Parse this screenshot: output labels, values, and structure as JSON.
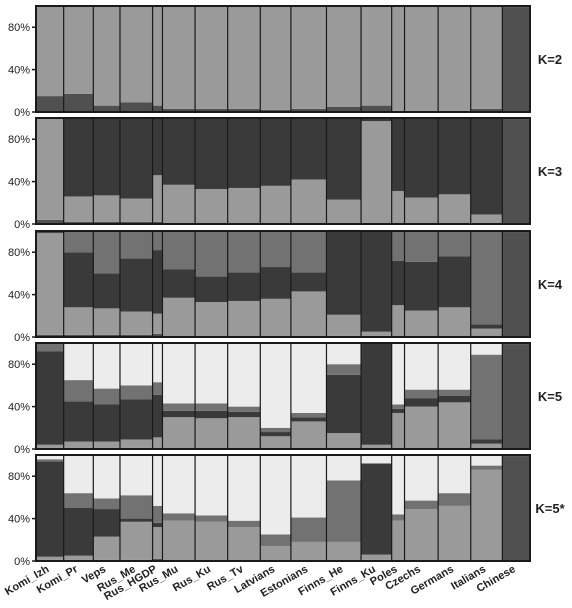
{
  "chart_data": {
    "type": "bar",
    "stacked": true,
    "normalized": true,
    "y_unit": "%",
    "ylim": [
      0,
      100
    ],
    "yticks": [
      0,
      40,
      80
    ],
    "categories": [
      "Komi_Izh",
      "Komi_Pr",
      "Veps",
      "Rus_Me",
      "Rus_HGDP",
      "Rus_Mu",
      "Rus_Ku",
      "Rus_Tv",
      "Latvians",
      "Estonians",
      "Finns_He",
      "Finns_Ku",
      "Poles",
      "Czechs",
      "Germans",
      "Italians",
      "Chinese"
    ],
    "category_widths": [
      28,
      30,
      27,
      33,
      10,
      33,
      33,
      33,
      31,
      36,
      35,
      31,
      13,
      34,
      33,
      32,
      28
    ],
    "component_colors": [
      "#505050",
      "#9a9a9a",
      "#3a3a3a",
      "#727272",
      "#ececec"
    ],
    "panels": [
      {
        "label": "K=2",
        "values": [
          [
            15,
            85
          ],
          [
            17,
            83
          ],
          [
            6,
            94
          ],
          [
            9,
            91
          ],
          [
            6,
            94
          ],
          [
            3,
            97
          ],
          [
            3,
            97
          ],
          [
            3,
            97
          ],
          [
            2,
            98
          ],
          [
            3,
            97
          ],
          [
            5,
            95
          ],
          [
            6,
            94
          ],
          [
            1,
            99
          ],
          [
            1,
            99
          ],
          [
            1,
            99
          ],
          [
            3,
            97
          ],
          [
            99,
            1
          ]
        ]
      },
      {
        "label": "K=3",
        "values": [
          [
            4,
            96,
            0
          ],
          [
            2,
            24,
            74
          ],
          [
            2,
            25,
            73
          ],
          [
            2,
            22,
            76
          ],
          [
            2,
            44,
            54
          ],
          [
            0,
            37,
            63
          ],
          [
            0,
            33,
            67
          ],
          [
            0,
            34,
            66
          ],
          [
            0,
            36,
            64
          ],
          [
            0,
            42,
            58
          ],
          [
            1,
            22,
            77
          ],
          [
            1,
            96,
            3
          ],
          [
            0,
            31,
            69
          ],
          [
            0,
            25,
            75
          ],
          [
            0,
            28,
            72
          ],
          [
            0,
            9,
            91
          ],
          [
            99,
            0,
            1
          ]
        ]
      },
      {
        "label": "K=4",
        "values": [
          [
            2,
            96,
            1,
            1
          ],
          [
            2,
            26,
            52,
            20
          ],
          [
            2,
            25,
            33,
            40
          ],
          [
            2,
            22,
            50,
            26
          ],
          [
            3,
            19,
            60,
            18
          ],
          [
            0,
            37,
            27,
            36
          ],
          [
            0,
            33,
            24,
            43
          ],
          [
            0,
            34,
            27,
            39
          ],
          [
            0,
            36,
            30,
            34
          ],
          [
            0,
            43,
            18,
            39
          ],
          [
            1,
            20,
            80,
            0
          ],
          [
            1,
            4,
            95,
            0
          ],
          [
            0,
            30,
            42,
            28
          ],
          [
            0,
            25,
            46,
            29
          ],
          [
            0,
            28,
            48,
            24
          ],
          [
            0,
            8,
            4,
            88
          ],
          [
            99,
            0,
            1,
            0
          ]
        ]
      },
      {
        "label": "K=5",
        "values": [
          [
            1,
            3,
            88,
            8,
            0
          ],
          [
            1,
            6,
            38,
            20,
            35
          ],
          [
            1,
            6,
            35,
            15,
            43
          ],
          [
            1,
            8,
            38,
            13,
            40
          ],
          [
            1,
            10,
            40,
            12,
            37
          ],
          [
            0,
            30,
            6,
            7,
            57
          ],
          [
            0,
            29,
            7,
            7,
            57
          ],
          [
            0,
            30,
            5,
            5,
            60
          ],
          [
            0,
            12,
            4,
            4,
            80
          ],
          [
            0,
            26,
            4,
            4,
            66
          ],
          [
            0,
            15,
            55,
            10,
            20
          ],
          [
            0,
            4,
            96,
            0,
            0
          ],
          [
            0,
            34,
            4,
            4,
            58
          ],
          [
            0,
            40,
            8,
            8,
            44
          ],
          [
            0,
            44,
            6,
            6,
            44
          ],
          [
            0,
            5,
            4,
            80,
            11
          ],
          [
            99,
            0,
            0,
            1,
            0
          ]
        ]
      },
      {
        "label": "K=5*",
        "values": [
          [
            1,
            3,
            90,
            2,
            4
          ],
          [
            1,
            4,
            45,
            14,
            36
          ],
          [
            1,
            22,
            26,
            10,
            41
          ],
          [
            1,
            36,
            3,
            22,
            38
          ],
          [
            2,
            30,
            4,
            16,
            48
          ],
          [
            0,
            38,
            0,
            7,
            55
          ],
          [
            0,
            37,
            0,
            6,
            57
          ],
          [
            0,
            32,
            0,
            6,
            62
          ],
          [
            0,
            14,
            0,
            11,
            75
          ],
          [
            0,
            18,
            0,
            23,
            59
          ],
          [
            0,
            18,
            0,
            58,
            24
          ],
          [
            1,
            5,
            86,
            0,
            8
          ],
          [
            0,
            38,
            0,
            6,
            56
          ],
          [
            0,
            49,
            0,
            8,
            43
          ],
          [
            0,
            52,
            0,
            12,
            36
          ],
          [
            0,
            86,
            0,
            4,
            10
          ],
          [
            99,
            0,
            0,
            1,
            0
          ]
        ]
      }
    ]
  }
}
